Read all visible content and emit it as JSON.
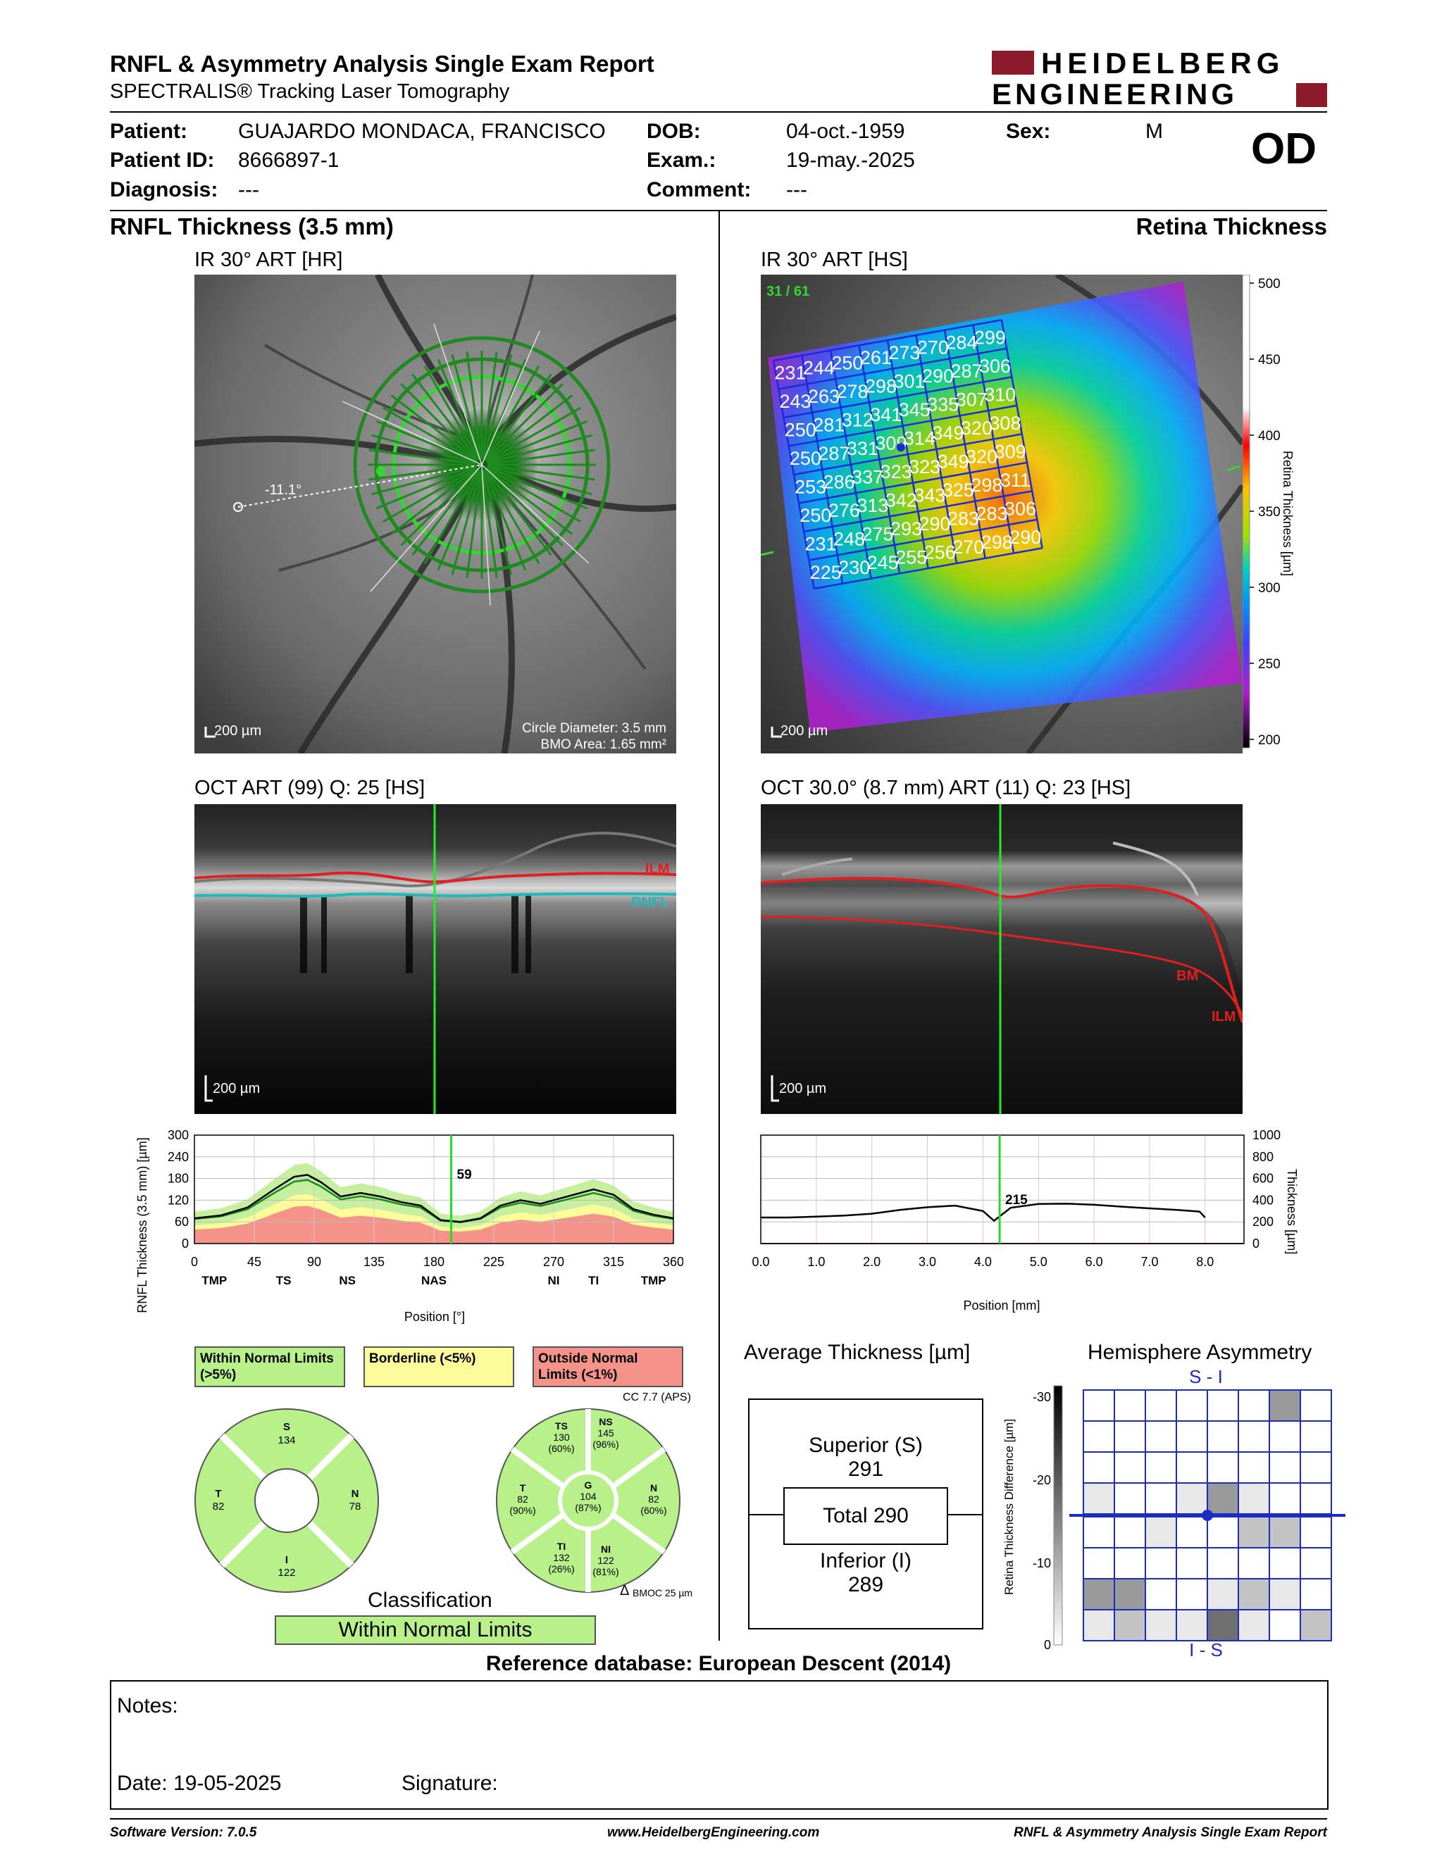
{
  "header": {
    "title": "RNFL & Asymmetry Analysis Single Exam Report",
    "subtitle": "SPECTRALIS® Tracking Laser Tomography",
    "logo_line1": "HEIDELBERG",
    "logo_line2": "ENGINEERING",
    "eye": "OD"
  },
  "patient": {
    "patient_label": "Patient:",
    "patient_value": "GUAJARDO MONDACA, FRANCISCO",
    "id_label": "Patient ID:",
    "id_value": "8666897-1",
    "diagnosis_label": "Diagnosis:",
    "diagnosis_value": "---",
    "dob_label": "DOB:",
    "dob_value": "04-oct.-1959",
    "exam_label": "Exam.:",
    "exam_value": "19-may.-2025",
    "comment_label": "Comment:",
    "comment_value": "---",
    "sex_label": "Sex:",
    "sex_value": "M"
  },
  "left": {
    "section_title": "RNFL Thickness (3.5 mm)",
    "ir_label": "IR 30° ART [HR]",
    "ir_scale": "200 µm",
    "ir_angle": "-11.1°",
    "circle_diameter": "Circle Diameter: 3.5 mm",
    "bmo_area": "BMO Area: 1.65 mm²",
    "oct_label": "OCT ART (99) Q: 25 [HS]",
    "oct_scale": "200 µm",
    "oct_ilm": "ILM",
    "oct_rnfl": "RNFL"
  },
  "right": {
    "section_title": "Retina Thickness",
    "ir_label": "IR 30° ART [HS]",
    "ir_scale": "200 µm",
    "ir_counter": "31 / 61",
    "colorbar_ticks": [
      "500",
      "450",
      "400",
      "350",
      "300",
      "250",
      "200"
    ],
    "colorbar_label": "Retina Thickness [µm]",
    "grid_values": [
      [
        231,
        244,
        250,
        261,
        273,
        270,
        284,
        299
      ],
      [
        243,
        263,
        278,
        298,
        301,
        290,
        287,
        306
      ],
      [
        250,
        281,
        312,
        341,
        345,
        335,
        307,
        310
      ],
      [
        250,
        287,
        331,
        309,
        314,
        349,
        320,
        308
      ],
      [
        253,
        286,
        337,
        323,
        323,
        349,
        320,
        309
      ],
      [
        250,
        276,
        313,
        342,
        343,
        325,
        298,
        311
      ],
      [
        231,
        248,
        275,
        293,
        290,
        283,
        283,
        306
      ],
      [
        225,
        230,
        245,
        255,
        256,
        270,
        298,
        290
      ]
    ],
    "oct_label": "OCT 30.0° (8.7 mm) ART (11) Q: 23 [HS]",
    "oct_scale": "200 µm",
    "oct_bm": "BM",
    "oct_ilm": "ILM"
  },
  "rnfl_chart": {
    "ylabel": "RNFL Thickness (3.5 mm) [µm]",
    "xlabel": "Position [°]",
    "yticks": [
      "300",
      "240",
      "180",
      "120",
      "60",
      "0"
    ],
    "xticks": [
      "0",
      "45",
      "90",
      "135",
      "180",
      "225",
      "270",
      "315",
      "360"
    ],
    "sectors": [
      "TMP",
      "TS",
      "NS",
      "NAS",
      "NI",
      "TI",
      "TMP"
    ],
    "cursor_value": "59"
  },
  "retina_chart": {
    "ylabel": "Thickness [µm]",
    "xlabel": "Position [mm]",
    "yticks": [
      "1000",
      "800",
      "600",
      "400",
      "200",
      "0"
    ],
    "xticks": [
      "0.0",
      "1.0",
      "2.0",
      "3.0",
      "4.0",
      "5.0",
      "6.0",
      "7.0",
      "8.0"
    ],
    "cursor_value": "215"
  },
  "chart_data": [
    {
      "type": "line",
      "ylabel": "RNFL Thickness (3.5 mm) [µm]",
      "xlabel": "Position [°]",
      "xlim": [
        0,
        360
      ],
      "ylim": [
        0,
        300
      ],
      "grid": true,
      "x": [
        0,
        20,
        40,
        60,
        75,
        85,
        95,
        110,
        125,
        140,
        155,
        170,
        185,
        200,
        215,
        230,
        245,
        260,
        275,
        290,
        300,
        315,
        330,
        345,
        360
      ],
      "series": [
        {
          "values": [
            70,
            78,
            100,
            150,
            185,
            190,
            170,
            130,
            140,
            130,
            115,
            105,
            65,
            60,
            70,
            105,
            120,
            110,
            125,
            140,
            150,
            135,
            95,
            80,
            70
          ]
        }
      ],
      "cursor": {
        "x": 193,
        "label": "59"
      }
    },
    {
      "type": "line",
      "ylabel": "Thickness [µm]",
      "xlabel": "Position [mm]",
      "xlim": [
        0,
        8.7
      ],
      "ylim": [
        0,
        1000
      ],
      "grid": true,
      "x": [
        0,
        0.5,
        1,
        1.5,
        2,
        2.5,
        3,
        3.5,
        4,
        4.2,
        4.5,
        5,
        5.5,
        6,
        6.5,
        7,
        7.5,
        7.9,
        8
      ],
      "series": [
        {
          "values": [
            240,
            240,
            248,
            258,
            275,
            310,
            335,
            350,
            300,
            210,
            330,
            365,
            368,
            358,
            340,
            325,
            310,
            295,
            240
          ]
        }
      ],
      "cursor": {
        "x": 4.3,
        "label": "215"
      }
    }
  ],
  "legend": {
    "within": "Within Normal Limits (>5%)",
    "borderline": "Borderline (<5%)",
    "outside": "Outside Normal Limits (<1%)",
    "cc": "CC 7.7 (APS)"
  },
  "pie1": {
    "S": "S",
    "S_val": "134",
    "T": "T",
    "T_val": "82",
    "N": "N",
    "N_val": "78",
    "I": "I",
    "I_val": "122"
  },
  "pie2": {
    "TS": "TS",
    "TS_val": "130",
    "TS_pct": "(60%)",
    "NS": "NS",
    "NS_val": "145",
    "NS_pct": "(96%)",
    "T": "T",
    "T_val": "82",
    "T_pct": "(90%)",
    "G": "G",
    "G_val": "104",
    "G_pct": "(87%)",
    "N": "N",
    "N_val": "82",
    "N_pct": "(60%)",
    "TI": "TI",
    "TI_val": "132",
    "TI_pct": "(26%)",
    "NI": "NI",
    "NI_val": "122",
    "NI_pct": "(81%)",
    "bmo": "BMOC 25 µm",
    "bmo_delta": "Δ"
  },
  "classification": {
    "title": "Classification",
    "value": "Within Normal Limits"
  },
  "average_thickness": {
    "title": "Average Thickness [µm]",
    "superior_label": "Superior (S)",
    "superior_value": "291",
    "total_label": "Total 290",
    "inferior_label": "Inferior (I)",
    "inferior_value": "289"
  },
  "asymmetry": {
    "title": "Hemisphere Asymmetry",
    "top_label": "S - I",
    "bottom_label": "I - S",
    "ylabel": "Retina Thickness Difference [µm]",
    "yticks": [
      "-30",
      "-20",
      "-10",
      "0"
    ],
    "cells_top": [
      [
        0,
        0,
        0,
        0,
        0,
        0,
        3,
        0
      ],
      [
        0,
        0,
        0,
        0,
        0,
        0,
        0,
        0
      ],
      [
        0,
        0,
        0,
        0,
        0,
        0,
        0,
        0
      ],
      [
        1,
        0,
        0,
        1,
        3,
        1,
        0,
        0
      ]
    ],
    "cells_bottom": [
      [
        0,
        0,
        1,
        0,
        0,
        2,
        2,
        0
      ],
      [
        0,
        0,
        0,
        0,
        0,
        0,
        0,
        0
      ],
      [
        3,
        3,
        0,
        0,
        1,
        2,
        1,
        0
      ],
      [
        1,
        2,
        1,
        1,
        4,
        1,
        0,
        2
      ]
    ]
  },
  "reference_db": "Reference database: European Descent (2014)",
  "notes": {
    "notes_label": "Notes:",
    "date_label": "Date: 19-05-2025",
    "signature_label": "Signature:"
  },
  "footer": {
    "software": "Software Version: 7.0.5",
    "website": "www.HeidelbergEngineering.com",
    "report": "RNFL & Asymmetry Analysis Single Exam Report"
  }
}
